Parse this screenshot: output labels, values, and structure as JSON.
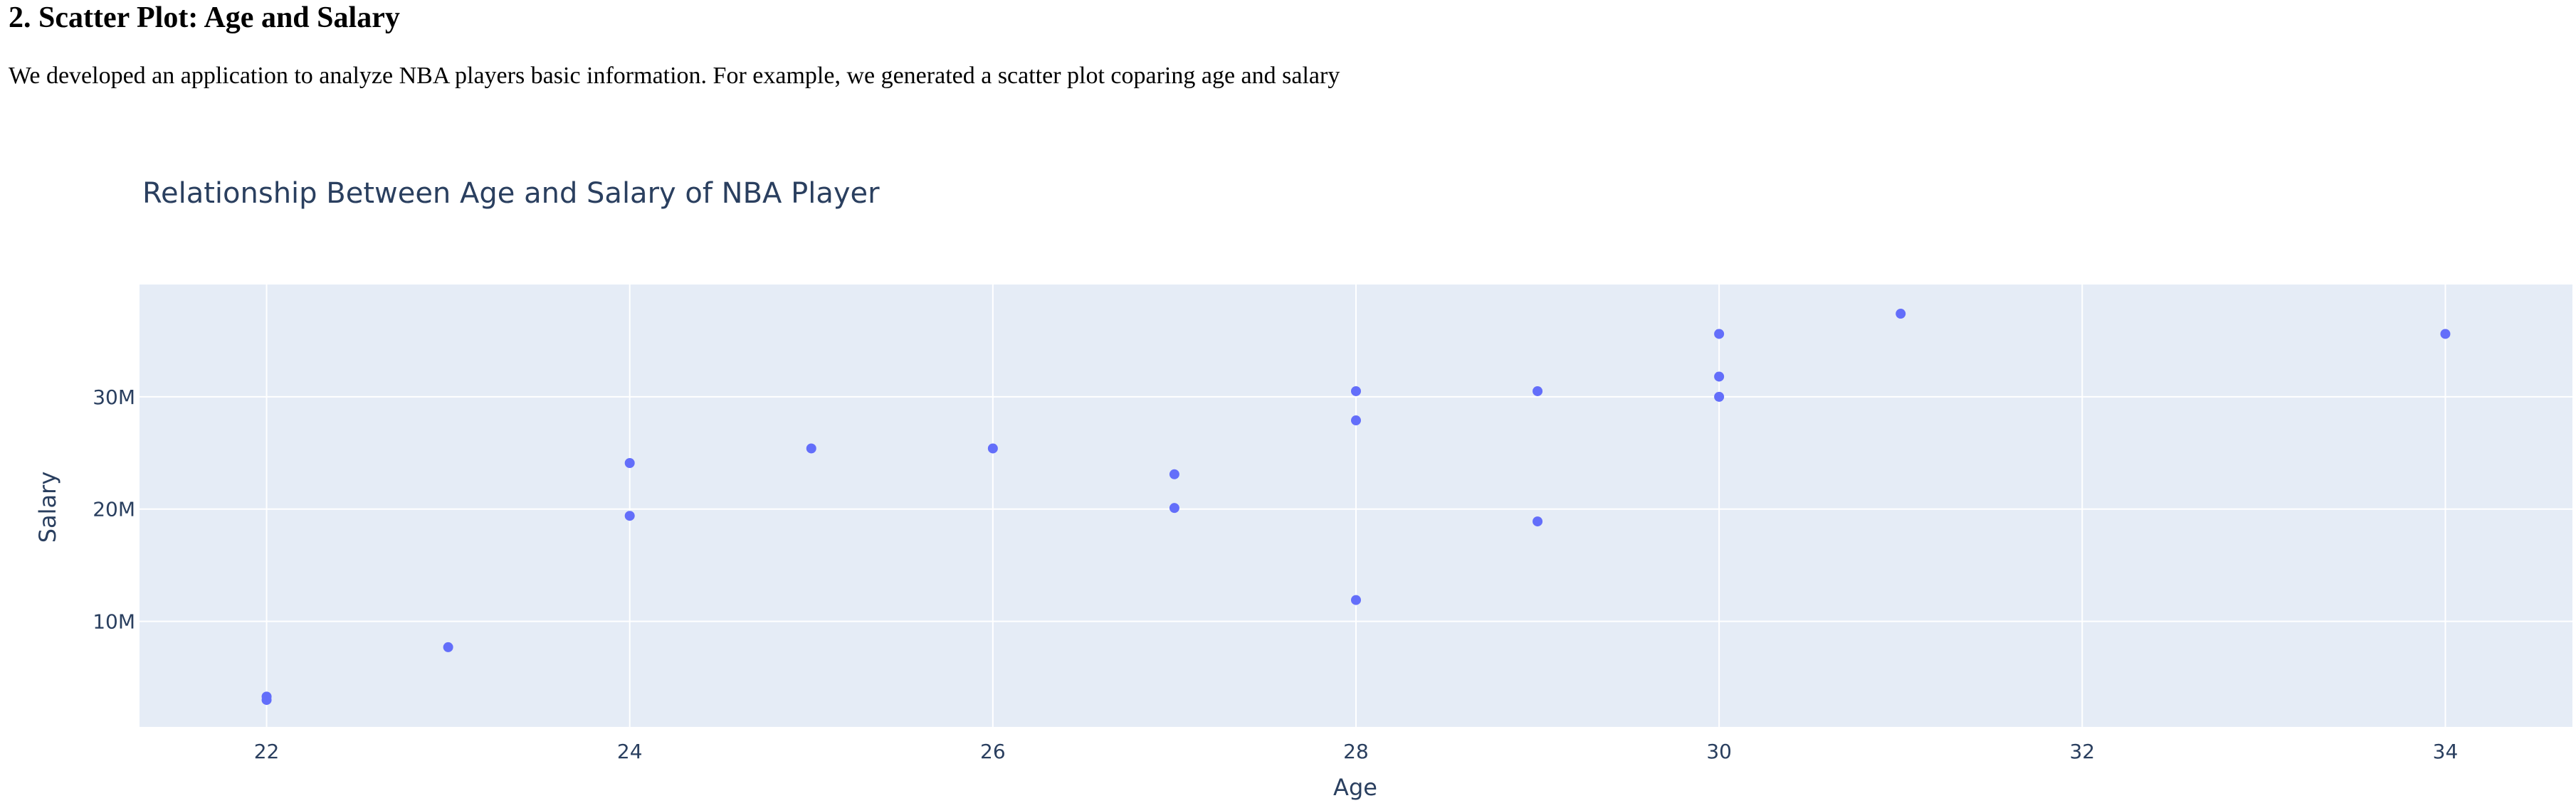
{
  "section": {
    "title": "2. Scatter Plot: Age and Salary",
    "description": "We developed an application to analyze NBA players basic information. For example, we generated a scatter plot coparing age and salary"
  },
  "colors": {
    "plot_background": "#e5ecf6",
    "grid": "#ffffff",
    "marker": "#636efa",
    "text": "#2a3f5f"
  },
  "chart_data": {
    "type": "scatter",
    "title": "Relationship Between Age and Salary of NBA Player",
    "xlabel": "Age",
    "ylabel": "Salary",
    "xlim": [
      21.3,
      34.7
    ],
    "ylim": [
      600000,
      40000000
    ],
    "x_ticks": [
      22,
      24,
      26,
      28,
      30,
      32,
      34
    ],
    "y_ticks": [
      10000000,
      20000000,
      30000000
    ],
    "y_tick_labels": [
      "10M",
      "20M",
      "30M"
    ],
    "grid": true,
    "legend": "none",
    "points": [
      {
        "x": 22,
        "y": 3000000
      },
      {
        "x": 22,
        "y": 3300000
      },
      {
        "x": 23,
        "y": 7700000
      },
      {
        "x": 24,
        "y": 19400000
      },
      {
        "x": 24,
        "y": 24100000
      },
      {
        "x": 25,
        "y": 25400000
      },
      {
        "x": 26,
        "y": 25400000
      },
      {
        "x": 27,
        "y": 20100000
      },
      {
        "x": 27,
        "y": 23100000
      },
      {
        "x": 28,
        "y": 11900000
      },
      {
        "x": 28,
        "y": 27900000
      },
      {
        "x": 28,
        "y": 30500000
      },
      {
        "x": 29,
        "y": 18900000
      },
      {
        "x": 29,
        "y": 30500000
      },
      {
        "x": 30,
        "y": 30000000
      },
      {
        "x": 30,
        "y": 31800000
      },
      {
        "x": 30,
        "y": 35600000
      },
      {
        "x": 31,
        "y": 37400000
      },
      {
        "x": 34,
        "y": 35600000
      }
    ]
  }
}
